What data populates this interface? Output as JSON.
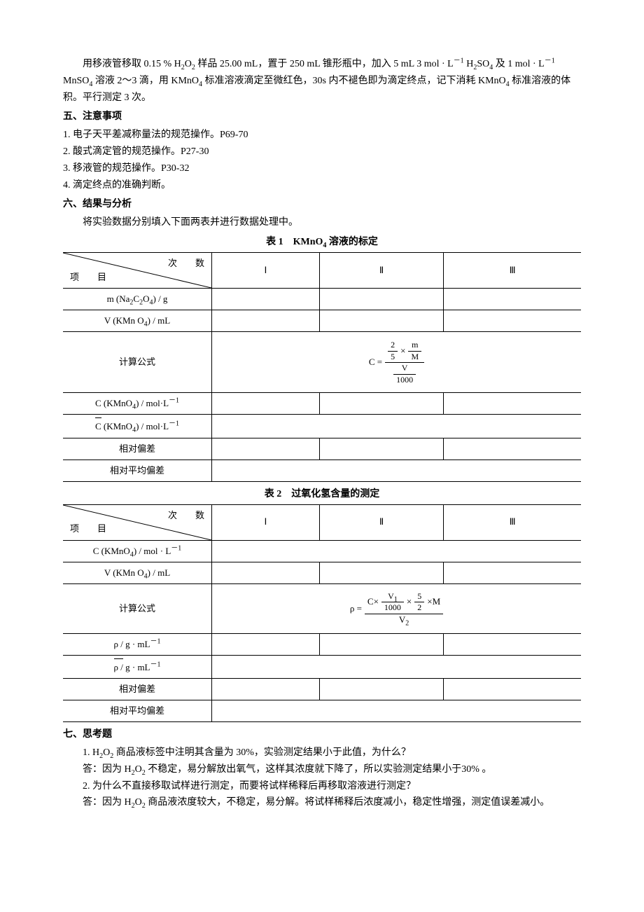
{
  "intro_paragraph_html": "用移液管移取 0.15 % H<sub>2</sub>O<sub>2</sub> 样品 25.00 mL，置于 250 mL 锥形瓶中，加入 5 mL 3 mol · L<sup>－1</sup> H<sub>2</sub>SO<sub>4</sub> 及 1 mol · L<sup>－1</sup> MnSO<sub>4</sub> 溶液 2～3 滴，用 KMnO<sub>4</sub> 标准溶液滴定至微红色，30s 内不褪色即为滴定终点，记下消耗 KMnO<sub>4</sub> 标准溶液的体积。平行测定 3 次。",
  "section5": {
    "title": "五、注意事项",
    "items": [
      "1.  电子天平差减称量法的规范操作。P69-70",
      "2.  酸式滴定管的规范操作。P27-30",
      "3.  移液管的规范操作。P30-32",
      "4.  滴定终点的准确判断。"
    ]
  },
  "section6": {
    "title": "六、结果与分析",
    "intro": "将实验数据分别填入下面两表并进行数据处理中。"
  },
  "table1": {
    "caption_html": "表 1　KMnO<sub>4</sub> 溶液的标定",
    "diag_top": "次　　数",
    "diag_bot": "项　　目",
    "cols": [
      "Ⅰ",
      "Ⅱ",
      "Ⅲ"
    ],
    "rows": [
      {
        "label_html": "m (Na<sub>2</sub>C<sub>2</sub>O<sub>4</sub>) / g",
        "cells": [
          "",
          "",
          ""
        ]
      },
      {
        "label_html": "V (KMn O<sub>4</sub>) / mL",
        "cells": [
          "",
          "",
          ""
        ]
      }
    ],
    "formula_label": "计算公式",
    "rows_after": [
      {
        "label_html": "C (KMnO<sub>4</sub>) / mol·L<sup>－1</sup>",
        "cells": [
          "",
          "",
          ""
        ]
      },
      {
        "label_html": "<span class=\"bar-over\">C</span> (KMnO<sub>4</sub>) / mol·L<sup>－1</sup>",
        "merged": ""
      },
      {
        "label_html": "相对偏差",
        "cells": [
          "",
          "",
          ""
        ]
      },
      {
        "label_html": "相对平均偏差",
        "merged": ""
      }
    ]
  },
  "table2": {
    "caption_html": "表 2　过氧化氢含量的测定",
    "diag_top": "次　　数",
    "diag_bot": "项　　目",
    "cols": [
      "Ⅰ",
      "Ⅱ",
      "Ⅲ"
    ],
    "rows": [
      {
        "label_html": "C (KMnO<sub>4</sub>) / mol · L<sup>－1</sup>",
        "merged": ""
      },
      {
        "label_html": "V (KMn O<sub>4</sub>) / mL",
        "cells": [
          "",
          "",
          ""
        ]
      }
    ],
    "formula_label": "计算公式",
    "rows_after": [
      {
        "label_html": "ρ / g · mL<sup>－1</sup>",
        "cells": [
          "",
          "",
          ""
        ]
      },
      {
        "label_html": "<span class=\"bar-over\">ρ /</span> g · mL<sup>－1</sup>",
        "merged": ""
      },
      {
        "label_html": "相对偏差",
        "cells": [
          "",
          "",
          ""
        ]
      },
      {
        "label_html": "相对平均偏差",
        "merged": ""
      }
    ]
  },
  "section7": {
    "title": "七、思考题",
    "q1_html": "1. H<sub>2</sub>O<sub>2</sub> 商品液标签中注明其含量为 30%，实验测定结果小于此值，为什么？",
    "a1_html": "答：因为 H<sub>2</sub>O<sub>2</sub> 不稳定，易分解放出氧气，这样其浓度就下降了，所以实验测定结果小于30% 。",
    "q2": "2. 为什么不直接移取试样进行测定，而要将试样稀释后再移取溶液进行测定？",
    "a2_html": "答：因为 H<sub>2</sub>O<sub>2</sub> 商品液浓度较大，不稳定，易分解。将试样稀释后浓度减小，稳定性增强，测定值误差减小。"
  },
  "formula1": {
    "lhs": "C =",
    "two_fifths_num": "2",
    "two_fifths_den": "5",
    "m_over_M_num": "m",
    "m_over_M_den": "M",
    "V": "V",
    "thousand": "1000"
  },
  "formula2": {
    "lhs": "ρ =",
    "C": "C×",
    "V1_num": "V",
    "V1_sub": "1",
    "thousand": "1000",
    "five_num": "5",
    "five_den": "2",
    "M": "×M",
    "V2_num": "V",
    "V2_sub": "2"
  }
}
